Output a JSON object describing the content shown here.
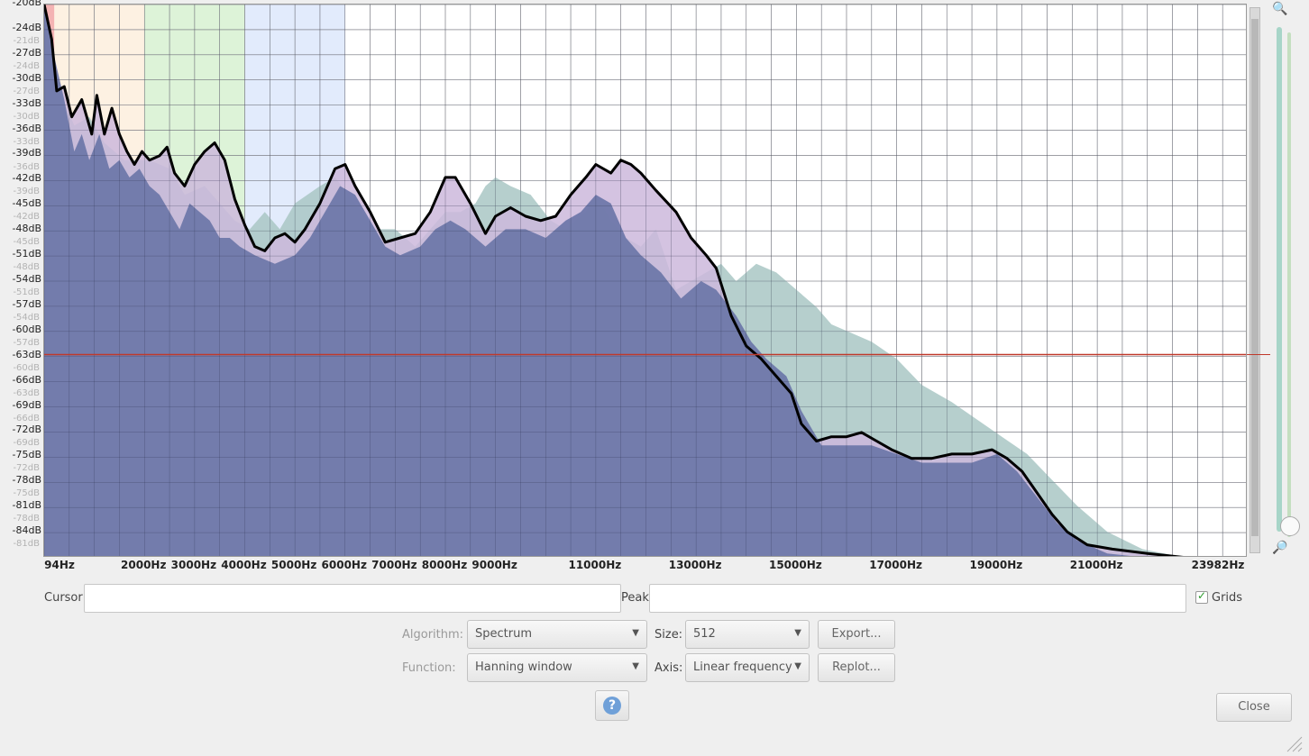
{
  "spectrum": {
    "y_axis_labels": [
      "-20dB",
      "-24dB",
      "-27dB",
      "-30dB",
      "-33dB",
      "-36dB",
      "-39dB",
      "-42dB",
      "-45dB",
      "-48dB",
      "-51dB",
      "-54dB",
      "-57dB",
      "-60dB",
      "-63dB",
      "-66dB",
      "-69dB",
      "-72dB",
      "-75dB",
      "-78dB",
      "-81dB",
      "-84dB"
    ],
    "y_axis_ghost_labels": [
      "-21dB",
      "-24dB",
      "-27dB",
      "-30dB",
      "-33dB",
      "-36dB",
      "-39dB",
      "-42dB",
      "-45dB",
      "-48dB",
      "-51dB",
      "-54dB",
      "-57dB",
      "-60dB",
      "-63dB",
      "-66dB",
      "-69dB",
      "-72dB",
      "-75dB",
      "-78dB",
      "-81dB"
    ],
    "x_axis_labels": [
      {
        "text": "94Hz",
        "hz": 94
      },
      {
        "text": "2000Hz",
        "hz": 2000
      },
      {
        "text": "3000Hz",
        "hz": 3000
      },
      {
        "text": "4000Hz",
        "hz": 4000
      },
      {
        "text": "5000Hz",
        "hz": 5000
      },
      {
        "text": "6000Hz",
        "hz": 6000
      },
      {
        "text": "7000Hz",
        "hz": 7000
      },
      {
        "text": "8000Hz",
        "hz": 8000
      },
      {
        "text": "9000Hz",
        "hz": 9000
      },
      {
        "text": "11000Hz",
        "hz": 11000
      },
      {
        "text": "13000Hz",
        "hz": 13000
      },
      {
        "text": "15000Hz",
        "hz": 15000
      },
      {
        "text": "17000Hz",
        "hz": 17000
      },
      {
        "text": "19000Hz",
        "hz": 19000
      },
      {
        "text": "21000Hz",
        "hz": 21000
      },
      {
        "text": "23982Hz",
        "hz": 23982
      }
    ],
    "y_range_db": [
      -20,
      -84
    ],
    "x_range_hz": [
      0,
      24000
    ],
    "reference_line_db": -60.5,
    "colors": {
      "main_fill": "#6b76a8",
      "secondary_fill": "#a9c7c4",
      "peak_fill": "#cdb8dc",
      "curve": "#000000",
      "ref_line": "#c0392b",
      "band_orange": "#fbe7cf",
      "band_green": "#cfeec8",
      "band_blue": "#d6e2fb",
      "band_red": "#f1a0a0"
    },
    "main_curve": [
      [
        0,
        -20
      ],
      [
        150,
        -24
      ],
      [
        250,
        -30
      ],
      [
        400,
        -29.5
      ],
      [
        550,
        -33
      ],
      [
        750,
        -31
      ],
      [
        950,
        -35
      ],
      [
        1050,
        -30.5
      ],
      [
        1200,
        -35
      ],
      [
        1350,
        -32
      ],
      [
        1500,
        -35
      ],
      [
        1650,
        -37
      ],
      [
        1800,
        -38.5
      ],
      [
        1950,
        -37
      ],
      [
        2100,
        -38
      ],
      [
        2300,
        -37.5
      ],
      [
        2450,
        -36.5
      ],
      [
        2600,
        -39.5
      ],
      [
        2800,
        -41
      ],
      [
        3000,
        -38.5
      ],
      [
        3200,
        -37
      ],
      [
        3400,
        -36
      ],
      [
        3600,
        -38
      ],
      [
        3800,
        -42.5
      ],
      [
        4000,
        -45.5
      ],
      [
        4200,
        -48
      ],
      [
        4400,
        -48.5
      ],
      [
        4600,
        -47
      ],
      [
        4800,
        -46.5
      ],
      [
        5000,
        -47.5
      ],
      [
        5200,
        -46
      ],
      [
        5500,
        -43
      ],
      [
        5800,
        -39
      ],
      [
        6000,
        -38.5
      ],
      [
        6200,
        -41
      ],
      [
        6500,
        -44
      ],
      [
        6800,
        -47.5
      ],
      [
        7100,
        -47
      ],
      [
        7400,
        -46.5
      ],
      [
        7700,
        -44
      ],
      [
        8000,
        -40
      ],
      [
        8200,
        -40
      ],
      [
        8500,
        -43
      ],
      [
        8800,
        -46.5
      ],
      [
        9000,
        -44.5
      ],
      [
        9300,
        -43.5
      ],
      [
        9600,
        -44.5
      ],
      [
        9900,
        -45
      ],
      [
        10200,
        -44.5
      ],
      [
        10500,
        -42
      ],
      [
        10800,
        -40
      ],
      [
        11000,
        -38.5
      ],
      [
        11300,
        -39.5
      ],
      [
        11500,
        -38
      ],
      [
        11700,
        -38.5
      ],
      [
        11900,
        -39.5
      ],
      [
        12200,
        -41.5
      ],
      [
        12600,
        -44
      ],
      [
        12900,
        -47
      ],
      [
        13200,
        -49
      ],
      [
        13400,
        -50.5
      ],
      [
        13700,
        -56
      ],
      [
        14000,
        -59.5
      ],
      [
        14300,
        -61
      ],
      [
        14600,
        -63
      ],
      [
        14900,
        -65
      ],
      [
        15100,
        -68.5
      ],
      [
        15400,
        -70.5
      ],
      [
        15700,
        -70
      ],
      [
        16000,
        -70
      ],
      [
        16300,
        -69.5
      ],
      [
        16600,
        -70.5
      ],
      [
        16900,
        -71.5
      ],
      [
        17300,
        -72.5
      ],
      [
        17700,
        -72.5
      ],
      [
        18100,
        -72
      ],
      [
        18500,
        -72
      ],
      [
        18900,
        -71.5
      ],
      [
        19200,
        -72.5
      ],
      [
        19500,
        -74
      ],
      [
        19800,
        -76.5
      ],
      [
        20100,
        -79
      ],
      [
        20400,
        -81
      ],
      [
        20800,
        -82.5
      ],
      [
        21300,
        -83
      ],
      [
        22000,
        -83.5
      ],
      [
        22800,
        -84
      ],
      [
        23982,
        -84.2
      ]
    ],
    "secondary_curve": [
      [
        0,
        -20
      ],
      [
        300,
        -30
      ],
      [
        600,
        -34
      ],
      [
        900,
        -33
      ],
      [
        1200,
        -36
      ],
      [
        1600,
        -38
      ],
      [
        2100,
        -38
      ],
      [
        2500,
        -39
      ],
      [
        2800,
        -42
      ],
      [
        3200,
        -41
      ],
      [
        3500,
        -43
      ],
      [
        3800,
        -45
      ],
      [
        4100,
        -46
      ],
      [
        4400,
        -44
      ],
      [
        4700,
        -46
      ],
      [
        5000,
        -43
      ],
      [
        5500,
        -41
      ],
      [
        5800,
        -40
      ],
      [
        6200,
        -43
      ],
      [
        6600,
        -46
      ],
      [
        7000,
        -46
      ],
      [
        7400,
        -48
      ],
      [
        7700,
        -46
      ],
      [
        8000,
        -44
      ],
      [
        8300,
        -44
      ],
      [
        8600,
        -43
      ],
      [
        8800,
        -41
      ],
      [
        9000,
        -40
      ],
      [
        9300,
        -41
      ],
      [
        9700,
        -42
      ],
      [
        10100,
        -45
      ],
      [
        10400,
        -46
      ],
      [
        10800,
        -44
      ],
      [
        11000,
        -42
      ],
      [
        11300,
        -45
      ],
      [
        11600,
        -47
      ],
      [
        11900,
        -48
      ],
      [
        12200,
        -46
      ],
      [
        12600,
        -53
      ],
      [
        12900,
        -52
      ],
      [
        13200,
        -51
      ],
      [
        13500,
        -50
      ],
      [
        13800,
        -52
      ],
      [
        14200,
        -50
      ],
      [
        14600,
        -51
      ],
      [
        15000,
        -53
      ],
      [
        15400,
        -55
      ],
      [
        15700,
        -57
      ],
      [
        16100,
        -58
      ],
      [
        16500,
        -59
      ],
      [
        17000,
        -61
      ],
      [
        17500,
        -64
      ],
      [
        18100,
        -66
      ],
      [
        18600,
        -68
      ],
      [
        19100,
        -70
      ],
      [
        19600,
        -72
      ],
      [
        20100,
        -75
      ],
      [
        20600,
        -78
      ],
      [
        21200,
        -81
      ],
      [
        21900,
        -83
      ],
      [
        22600,
        -83.8
      ],
      [
        23400,
        -84.2
      ],
      [
        23982,
        -84.5
      ]
    ],
    "underlay_curve": [
      [
        0,
        -20
      ],
      [
        200,
        -26
      ],
      [
        400,
        -31
      ],
      [
        600,
        -37
      ],
      [
        750,
        -35
      ],
      [
        900,
        -38
      ],
      [
        1100,
        -35
      ],
      [
        1300,
        -39
      ],
      [
        1500,
        -38
      ],
      [
        1700,
        -40
      ],
      [
        1900,
        -39
      ],
      [
        2100,
        -41
      ],
      [
        2300,
        -42
      ],
      [
        2500,
        -44
      ],
      [
        2700,
        -46
      ],
      [
        2900,
        -43
      ],
      [
        3100,
        -44
      ],
      [
        3300,
        -45
      ],
      [
        3500,
        -47
      ],
      [
        3700,
        -47
      ],
      [
        3900,
        -48
      ],
      [
        4200,
        -49
      ],
      [
        4600,
        -50
      ],
      [
        5000,
        -49
      ],
      [
        5300,
        -47
      ],
      [
        5600,
        -44
      ],
      [
        5900,
        -41
      ],
      [
        6200,
        -42
      ],
      [
        6500,
        -45
      ],
      [
        6800,
        -48
      ],
      [
        7100,
        -49
      ],
      [
        7500,
        -48
      ],
      [
        7800,
        -46
      ],
      [
        8100,
        -45
      ],
      [
        8400,
        -46
      ],
      [
        8800,
        -48
      ],
      [
        9200,
        -46
      ],
      [
        9600,
        -46
      ],
      [
        10000,
        -47
      ],
      [
        10400,
        -45
      ],
      [
        10700,
        -44
      ],
      [
        11000,
        -42
      ],
      [
        11300,
        -43
      ],
      [
        11600,
        -47
      ],
      [
        11900,
        -49
      ],
      [
        12300,
        -51
      ],
      [
        12700,
        -54
      ],
      [
        13100,
        -52
      ],
      [
        13400,
        -53
      ],
      [
        13800,
        -56
      ],
      [
        14100,
        -59
      ],
      [
        14400,
        -61
      ],
      [
        14800,
        -63
      ],
      [
        15100,
        -67
      ],
      [
        15500,
        -71
      ],
      [
        16000,
        -71
      ],
      [
        16500,
        -71
      ],
      [
        17000,
        -72
      ],
      [
        17500,
        -73
      ],
      [
        18000,
        -73
      ],
      [
        18500,
        -73
      ],
      [
        19000,
        -72
      ],
      [
        19400,
        -74
      ],
      [
        19800,
        -77
      ],
      [
        20200,
        -80
      ],
      [
        20600,
        -82
      ],
      [
        21200,
        -83.5
      ],
      [
        22000,
        -84
      ],
      [
        23982,
        -84.5
      ]
    ]
  },
  "controls": {
    "cursor_label": "Cursor:",
    "cursor_value": "",
    "peak_label": "Peak:",
    "peak_value": "",
    "grids_label": "Grids",
    "grids_checked": true,
    "algorithm_label": "Algorithm:",
    "algorithm_value": "Spectrum",
    "size_label": "Size:",
    "size_value": "512",
    "export_label": "Export...",
    "function_label": "Function:",
    "function_value": "Hanning window",
    "axis_label": "Axis:",
    "axis_value": "Linear frequency",
    "replot_label": "Replot...",
    "close_label": "Close",
    "help_glyph": "?",
    "icons": {
      "zoom_in": "zoom-in-icon",
      "zoom_out": "zoom-out-icon",
      "help": "help-icon",
      "check": "checkmark-icon",
      "dropdown": "chevron-down-icon"
    }
  }
}
